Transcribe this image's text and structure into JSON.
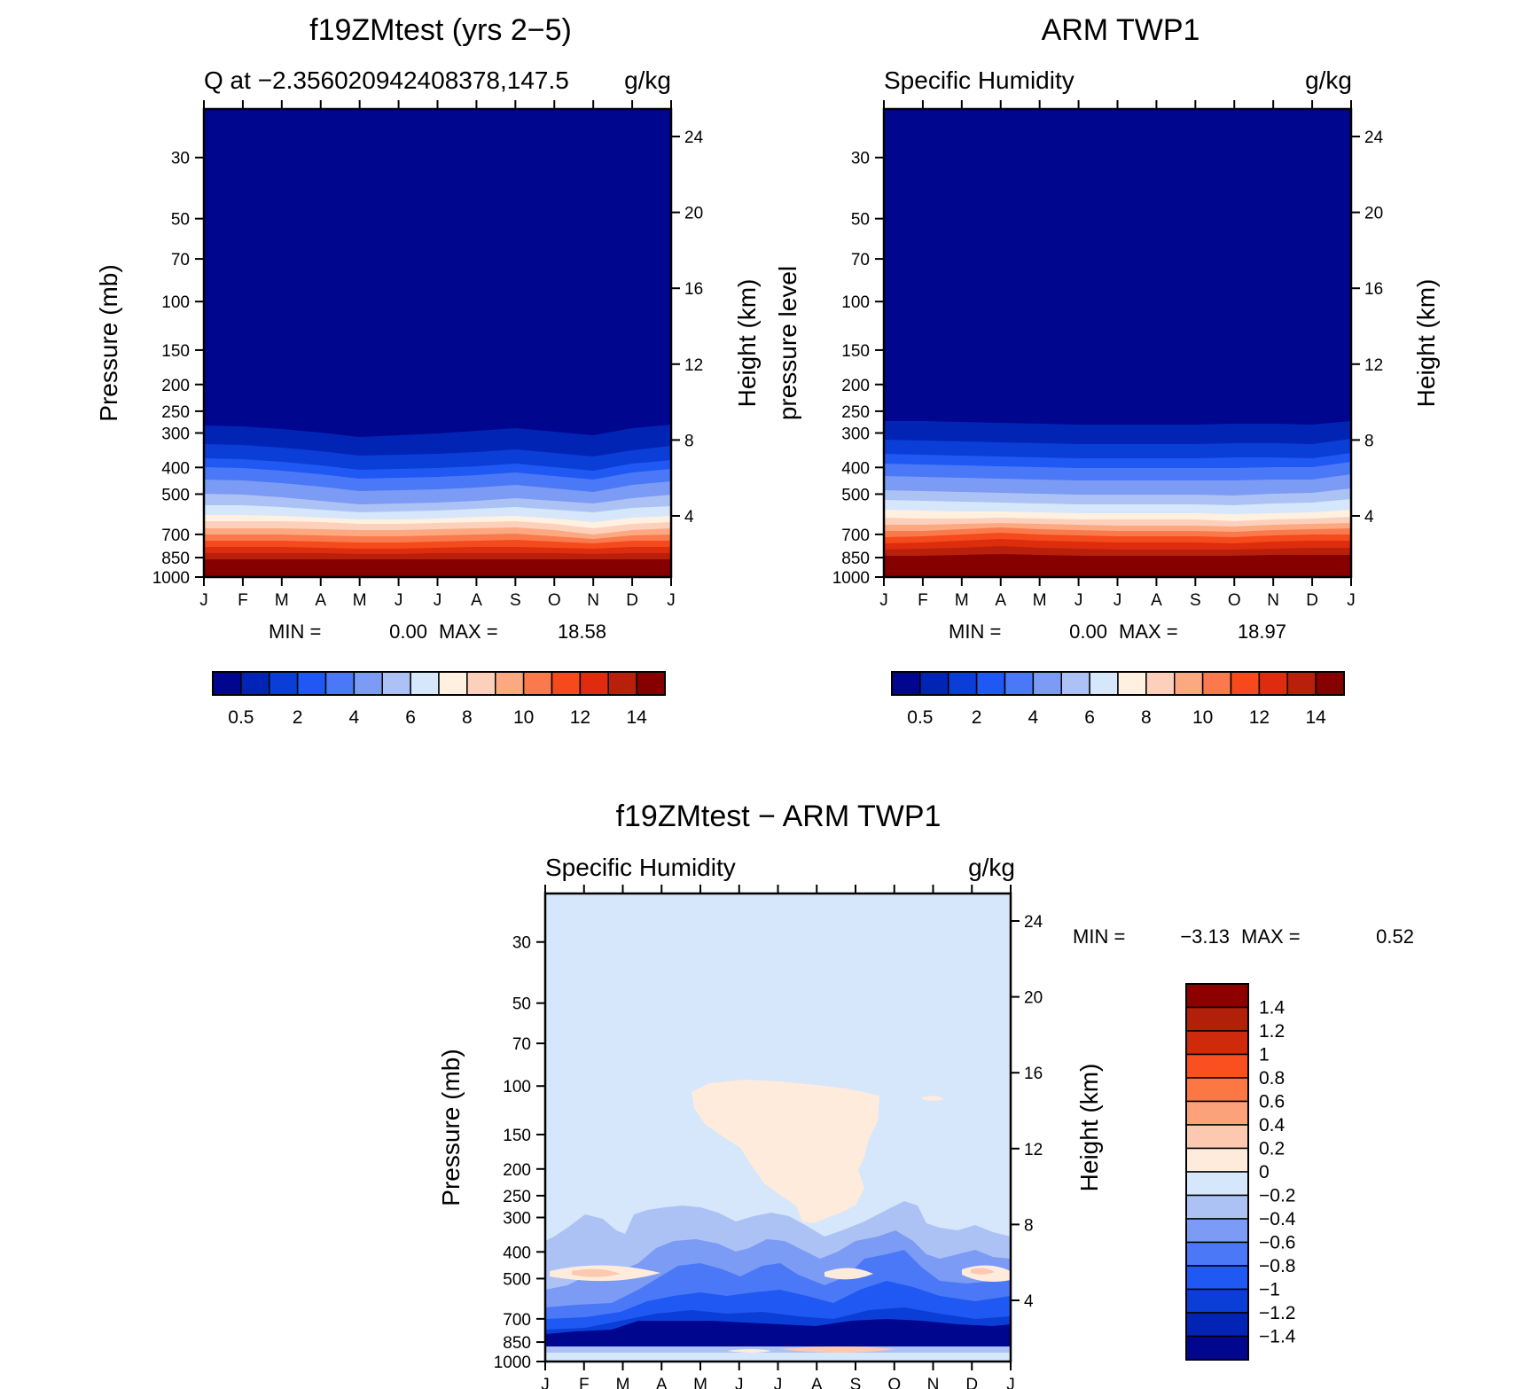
{
  "colors": {
    "q_levels": [
      "#00068d",
      "#0224b5",
      "#0b3ed6",
      "#1f58f2",
      "#4a78f6",
      "#7b9bf4",
      "#adc2f4",
      "#d6e7fb",
      "#fff0e0",
      "#fdd0bc",
      "#fca982",
      "#fb7a4d",
      "#f54a1c",
      "#dd2c0e",
      "#b8200b",
      "#870000"
    ],
    "diff_levels": [
      "#00068d",
      "#0224b5",
      "#0b3ed6",
      "#1f58f2",
      "#4a78f6",
      "#7b9bf4",
      "#adc2f4",
      "#d6e7fb",
      "#ffebdc",
      "#fcc8b0",
      "#fca27a",
      "#fb7843",
      "#fa4f1e",
      "#ce2a0b",
      "#b3200a",
      "#8c0000"
    ]
  },
  "chart_data": [
    {
      "type": "heatmap",
      "title": "f19ZMtest (yrs 2−5)",
      "subtitle_left": "Q at −2.356020942408378,147.5",
      "subtitle_right": "g/kg",
      "ylabel": "Pressure (mb)",
      "ylabel_right": "Height (km)",
      "x_ticks": [
        "J",
        "F",
        "M",
        "A",
        "M",
        "J",
        "J",
        "A",
        "S",
        "O",
        "N",
        "D",
        "J"
      ],
      "y_ticks": [
        "30",
        "50",
        "70",
        "100",
        "150",
        "200",
        "250",
        "300",
        "400",
        "500",
        "700",
        "850",
        "1000"
      ],
      "y_ticks_right": [
        "24",
        "20",
        "16",
        "12",
        "8",
        "4"
      ],
      "stats": {
        "min_label": "MIN =",
        "min": "0.00",
        "max_label": "MAX =",
        "max": "18.58"
      },
      "colorbar_labels": [
        "0.5",
        "2",
        "4",
        "6",
        "8",
        "10",
        "12",
        "14"
      ]
    },
    {
      "type": "heatmap",
      "title": "ARM TWP1",
      "subtitle_left": "Specific Humidity",
      "subtitle_right": "g/kg",
      "ylabel": "pressure level",
      "ylabel_right": "Height (km)",
      "x_ticks": [
        "J",
        "F",
        "M",
        "A",
        "M",
        "J",
        "J",
        "A",
        "S",
        "O",
        "N",
        "D",
        "J"
      ],
      "y_ticks": [
        "30",
        "50",
        "70",
        "100",
        "150",
        "200",
        "250",
        "300",
        "400",
        "500",
        "700",
        "850",
        "1000"
      ],
      "y_ticks_right": [
        "24",
        "20",
        "16",
        "12",
        "8",
        "4"
      ],
      "stats": {
        "min_label": "MIN =",
        "min": "0.00",
        "max_label": "MAX =",
        "max": "18.97"
      },
      "colorbar_labels": [
        "0.5",
        "2",
        "4",
        "6",
        "8",
        "10",
        "12",
        "14"
      ]
    },
    {
      "type": "heatmap",
      "title": "f19ZMtest − ARM TWP1",
      "subtitle_left": "Specific Humidity",
      "subtitle_right": "g/kg",
      "ylabel": "Pressure (mb)",
      "ylabel_right": "Height (km)",
      "x_ticks": [
        "J",
        "F",
        "M",
        "A",
        "M",
        "J",
        "J",
        "A",
        "S",
        "O",
        "N",
        "D",
        "J"
      ],
      "y_ticks": [
        "30",
        "50",
        "70",
        "100",
        "150",
        "200",
        "250",
        "300",
        "400",
        "500",
        "700",
        "850",
        "1000"
      ],
      "y_ticks_right": [
        "24",
        "20",
        "16",
        "12",
        "8",
        "4"
      ],
      "stats": {
        "min_label": "MIN =",
        "min": "−3.13",
        "max_label": "MAX =",
        "max": "0.52"
      },
      "colorbar_labels": [
        "1.4",
        "1.2",
        "1",
        "0.8",
        "0.6",
        "0.4",
        "0.2",
        "0",
        "−0.2",
        "−0.4",
        "−0.6",
        "−0.8",
        "−1",
        "−1.2",
        "−1.4"
      ]
    }
  ]
}
